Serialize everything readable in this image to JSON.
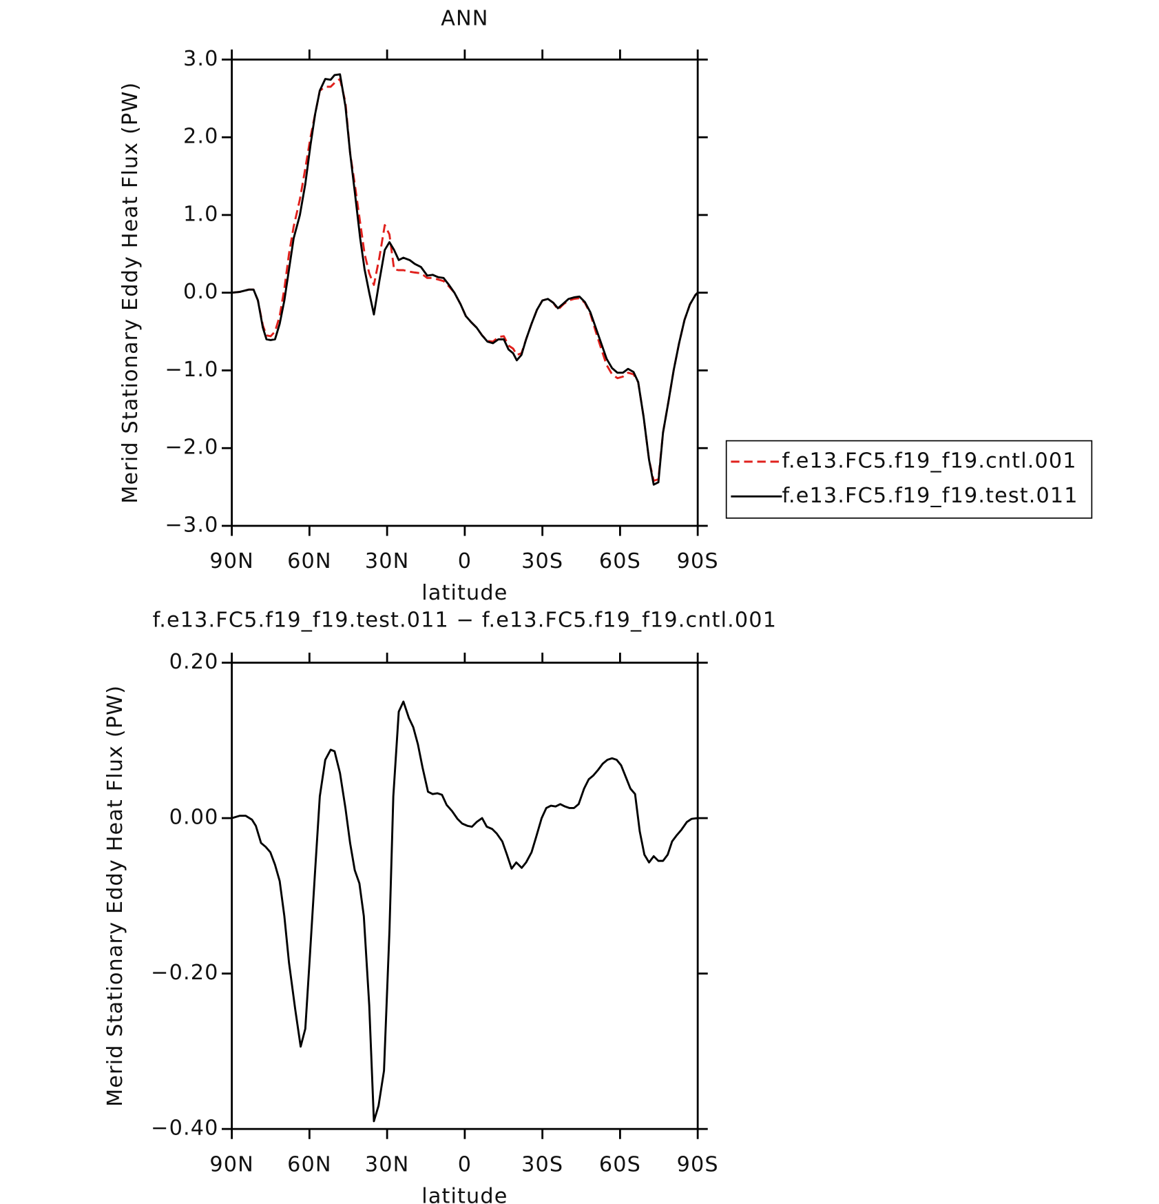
{
  "chart_data": [
    {
      "type": "line",
      "title": "ANN",
      "x_label": "latitude",
      "y_label": "Merid Stationary Eddy Heat Flux (PW)",
      "legend": "right",
      "x": [
        90,
        87,
        83.4,
        81.6,
        79.9,
        78,
        76.6,
        75,
        73.3,
        71.5,
        69.7,
        67.9,
        66.1,
        63.7,
        61.6,
        59.6,
        57.8,
        56,
        53.9,
        51.8,
        50.3,
        48.2,
        46.1,
        44.3,
        42.5,
        40.4,
        38.7,
        36.9,
        35.1,
        33,
        30.9,
        29.1,
        27.3,
        25.5,
        23.7,
        21.3,
        19.3,
        16.9,
        14.5,
        12.4,
        10.3,
        8.2,
        6.1,
        4,
        1.6,
        -0.4,
        -2.5,
        -4.6,
        -6.7,
        -8.8,
        -10.9,
        -13,
        -15.1,
        -16.9,
        -18.7,
        -20.1,
        -21.9,
        -23.7,
        -25.8,
        -27.9,
        -30,
        -32.1,
        -34.2,
        -36,
        -38.1,
        -40.1,
        -42.2,
        -44.3,
        -46.4,
        -48.5,
        -50.6,
        -52.7,
        -54.8,
        -56.9,
        -59,
        -61.1,
        -63.1,
        -65.2,
        -67,
        -69.1,
        -71.2,
        -73,
        -74.8,
        -76.6,
        -78.7,
        -80.7,
        -82.8,
        -84.9,
        -87,
        -89.1,
        -90
      ],
      "series": [
        {
          "name": "f.e13.FC5.f19_f19.cntl.001",
          "color": "#e0201c",
          "line_style": "dashed",
          "values": [
            0,
            0.01,
            0.04,
            0.04,
            -0.1,
            -0.42,
            -0.55,
            -0.56,
            -0.5,
            -0.3,
            0.05,
            0.5,
            0.85,
            1.2,
            1.6,
            2.0,
            2.3,
            2.6,
            2.65,
            2.65,
            2.7,
            2.75,
            2.45,
            1.8,
            1.4,
            0.9,
            0.5,
            0.25,
            0.1,
            0.45,
            0.87,
            0.75,
            0.3,
            0.29,
            0.29,
            0.27,
            0.26,
            0.25,
            0.19,
            0.19,
            0.17,
            0.15,
            0.08,
            0,
            -0.15,
            -0.3,
            -0.38,
            -0.45,
            -0.55,
            -0.62,
            -0.63,
            -0.57,
            -0.56,
            -0.68,
            -0.72,
            -0.8,
            -0.78,
            -0.6,
            -0.4,
            -0.22,
            -0.1,
            -0.08,
            -0.13,
            -0.22,
            -0.15,
            -0.1,
            -0.08,
            -0.07,
            -0.13,
            -0.27,
            -0.5,
            -0.72,
            -0.93,
            -1.05,
            -1.1,
            -1.08,
            -1.03,
            -1.05,
            -1.15,
            -1.6,
            -2.15,
            -2.42,
            -2.4,
            -1.8,
            -1.4,
            -1,
            -0.65,
            -0.35,
            -0.15,
            -0.03,
            0
          ]
        },
        {
          "name": "f.e13.FC5.f19_f19.test.011",
          "color": "#000000",
          "line_style": "solid",
          "values": [
            0,
            0.01,
            0.04,
            0.04,
            -0.1,
            -0.45,
            -0.6,
            -0.61,
            -0.6,
            -0.4,
            -0.1,
            0.3,
            0.7,
            1,
            1.4,
            1.9,
            2.3,
            2.6,
            2.75,
            2.74,
            2.8,
            2.81,
            2.4,
            1.8,
            1.3,
            0.7,
            0.3,
            0,
            -0.28,
            0.15,
            0.55,
            0.65,
            0.55,
            0.42,
            0.45,
            0.42,
            0.37,
            0.33,
            0.22,
            0.23,
            0.2,
            0.19,
            0.1,
            0,
            -0.15,
            -0.3,
            -0.38,
            -0.45,
            -0.55,
            -0.63,
            -0.65,
            -0.6,
            -0.6,
            -0.73,
            -0.78,
            -0.87,
            -0.8,
            -0.6,
            -0.4,
            -0.22,
            -0.1,
            -0.08,
            -0.13,
            -0.2,
            -0.14,
            -0.08,
            -0.06,
            -0.05,
            -0.12,
            -0.25,
            -0.45,
            -0.65,
            -0.85,
            -0.97,
            -1.03,
            -1.03,
            -0.98,
            -1.02,
            -1.15,
            -1.6,
            -2.15,
            -2.47,
            -2.44,
            -1.8,
            -1.4,
            -1,
            -0.65,
            -0.35,
            -0.15,
            -0.03,
            0
          ]
        }
      ],
      "xlim": [
        90,
        -90
      ],
      "xticks": [
        {
          "value": 90,
          "label": "90N"
        },
        {
          "value": 60,
          "label": "60N"
        },
        {
          "value": 30,
          "label": "30N"
        },
        0,
        {
          "value": -30,
          "label": "30S"
        },
        {
          "value": -60,
          "label": "60S"
        },
        {
          "value": -90,
          "label": "90S"
        }
      ],
      "ylim": [
        -3,
        3
      ],
      "yticks": [
        {
          "value": 3,
          "label": "3.0"
        },
        {
          "value": 2,
          "label": "2.0"
        },
        {
          "value": 1,
          "label": "1.0"
        },
        {
          "value": 0,
          "label": "0.0"
        },
        {
          "value": -1,
          "label": "−1.0"
        },
        {
          "value": -2,
          "label": "−2.0"
        },
        {
          "value": -3,
          "label": "−3.0"
        }
      ]
    },
    {
      "type": "line",
      "title": "f.e13.FC5.f19_f19.test.011 − f.e13.FC5.f19_f19.cntl.001",
      "x_label": "latitude",
      "y_label": "Merid Stationary Eddy Heat Flux (PW)",
      "color": "#000000",
      "x": [
        90,
        87,
        84.6,
        82.2,
        80.7,
        78.7,
        76.9,
        75.1,
        73.3,
        71.5,
        69.7,
        67.9,
        65.5,
        63.4,
        61.6,
        59.9,
        57.8,
        56,
        53.9,
        51.8,
        50.3,
        48.2,
        46.1,
        44.3,
        42.5,
        40.7,
        39,
        36.9,
        35.1,
        33.3,
        31.2,
        29.1,
        27.6,
        25.5,
        23.7,
        21.6,
        19.9,
        18.1,
        16.3,
        14.2,
        12.4,
        10.6,
        8.8,
        7,
        4.9,
        2.8,
        1,
        -1.1,
        -2.8,
        -4.6,
        -6.7,
        -8.5,
        -10.6,
        -12.4,
        -14.5,
        -16.3,
        -18.1,
        -19.9,
        -22,
        -23.7,
        -25.8,
        -27.6,
        -29.7,
        -31.5,
        -33.3,
        -35.1,
        -36.9,
        -38.7,
        -40.4,
        -42.2,
        -44,
        -46.1,
        -47.9,
        -49.7,
        -51.5,
        -53.3,
        -55.1,
        -56.9,
        -58.7,
        -60.4,
        -62.2,
        -64,
        -65.8,
        -67.6,
        -69.4,
        -71.2,
        -73,
        -74.8,
        -76.6,
        -78.4,
        -80.1,
        -81.9,
        -83.7,
        -85.8,
        -87.6,
        -90
      ],
      "values": [
        0,
        0.003,
        0.003,
        -0.002,
        -0.01,
        -0.032,
        -0.037,
        -0.044,
        -0.06,
        -0.081,
        -0.126,
        -0.186,
        -0.246,
        -0.294,
        -0.271,
        -0.181,
        -0.067,
        0.028,
        0.075,
        0.088,
        0.086,
        0.058,
        0.013,
        -0.032,
        -0.067,
        -0.084,
        -0.126,
        -0.241,
        -0.39,
        -0.37,
        -0.325,
        -0.146,
        0.028,
        0.137,
        0.15,
        0.129,
        0.117,
        0.095,
        0.065,
        0.034,
        0.031,
        0.032,
        0.03,
        0.017,
        0.009,
        -0.001,
        -0.007,
        -0.01,
        -0.011,
        -0.005,
        0,
        -0.011,
        -0.014,
        -0.02,
        -0.03,
        -0.047,
        -0.065,
        -0.057,
        -0.064,
        -0.057,
        -0.044,
        -0.024,
        0,
        0.013,
        0.016,
        0.015,
        0.018,
        0.015,
        0.013,
        0.013,
        0.018,
        0.038,
        0.05,
        0.055,
        0.062,
        0.07,
        0.075,
        0.077,
        0.075,
        0.068,
        0.053,
        0.038,
        0.031,
        -0.017,
        -0.047,
        -0.057,
        -0.049,
        -0.055,
        -0.055,
        -0.047,
        -0.03,
        -0.022,
        -0.015,
        -0.005,
        -0.001,
        0
      ],
      "xlim": [
        90,
        -90
      ],
      "xticks": [
        {
          "value": 90,
          "label": "90N"
        },
        {
          "value": 60,
          "label": "60N"
        },
        {
          "value": 30,
          "label": "30N"
        },
        0,
        {
          "value": -30,
          "label": "30S"
        },
        {
          "value": -60,
          "label": "60S"
        },
        {
          "value": -90,
          "label": "90S"
        }
      ],
      "ylim": [
        -0.4,
        0.2
      ],
      "yticks": [
        {
          "value": 0.2,
          "label": "0.20"
        },
        {
          "value": 0,
          "label": "0.00"
        },
        {
          "value": -0.2,
          "label": "−0.20"
        },
        {
          "value": -0.4,
          "label": "−0.40"
        }
      ]
    }
  ]
}
